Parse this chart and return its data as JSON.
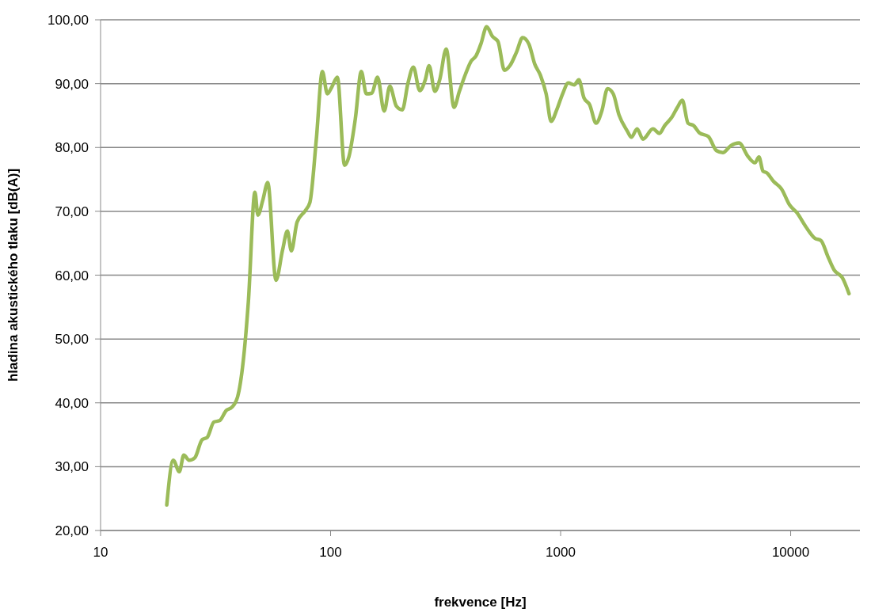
{
  "chart_data": {
    "type": "line",
    "xlabel": "frekvence [Hz]",
    "ylabel": "hladina akustického tlaku [dB(A)]",
    "log": "x",
    "grid": "y",
    "marker": "none",
    "line_style": "solid",
    "xlim": [
      10,
      20000
    ],
    "xticks": [
      10,
      100,
      1000,
      10000
    ],
    "ylim": [
      20,
      100
    ],
    "yticks": [
      {
        "value": 20,
        "label": "20,00"
      },
      {
        "value": 30,
        "label": "30,00"
      },
      {
        "value": 40,
        "label": "40,00"
      },
      {
        "value": 50,
        "label": "50,00"
      },
      {
        "value": 60,
        "label": "60,00"
      },
      {
        "value": 70,
        "label": "70,00"
      },
      {
        "value": 80,
        "label": "80,00"
      },
      {
        "value": 90,
        "label": "90,00"
      },
      {
        "value": 100,
        "label": "100,00"
      }
    ],
    "x": [
      19.4,
      20.7,
      22,
      23,
      24.3,
      25.7,
      27.6,
      29.1,
      31.1,
      32.9,
      35.2,
      37.2,
      39.4,
      41.7,
      43.9,
      46.9,
      48.3,
      50.7,
      53.3,
      57.9,
      61.8,
      64.9,
      67.5,
      71.5,
      77.6,
      81.3,
      86.7,
      92.1,
      96.8,
      101,
      107,
      115,
      120,
      128,
      136,
      143,
      151,
      160,
      171,
      181,
      193,
      205,
      217,
      229,
      244,
      258,
      268,
      284,
      298,
      318,
      344,
      363,
      386,
      408,
      428,
      450,
      477,
      505,
      534,
      570,
      604,
      644,
      683,
      728,
      771,
      817,
      865,
      909,
      962,
      1020,
      1080,
      1145,
      1200,
      1262,
      1337,
      1426,
      1510,
      1599,
      1693,
      1794,
      1947,
      2030,
      2150,
      2280,
      2519,
      2690,
      2830,
      3040,
      3220,
      3380,
      3580,
      3790,
      4010,
      4390,
      4760,
      5070,
      5500,
      5960,
      6550,
      6990,
      7280,
      7580,
      7890,
      8420,
      9130,
      9890,
      10630,
      11630,
      12720,
      13560,
      14480,
      15450,
      16770,
      17930
    ],
    "series": [
      {
        "color": "#9bbb59",
        "values": [
          24.0,
          31.0,
          29.2,
          31.8,
          31.0,
          31.4,
          34.2,
          34.6,
          37.0,
          37.2,
          38.8,
          39.3,
          40.9,
          46.5,
          55.8,
          73.0,
          69.4,
          71.7,
          74.5,
          59.2,
          63.9,
          66.9,
          63.8,
          68.3,
          70.1,
          71.4,
          81.3,
          91.9,
          88.4,
          89.4,
          91.0,
          77.2,
          78.5,
          84.4,
          91.9,
          88.4,
          88.5,
          91.0,
          85.7,
          89.6,
          86.5,
          85.9,
          90.1,
          92.6,
          88.9,
          90.6,
          92.8,
          88.8,
          90.6,
          95.4,
          86.3,
          88.8,
          91.5,
          93.5,
          94.3,
          96.2,
          98.9,
          97.4,
          96.6,
          92.1,
          92.9,
          95.0,
          97.2,
          96.2,
          93.1,
          91.3,
          88.4,
          84.1,
          85.9,
          88.4,
          90.1,
          89.8,
          90.6,
          87.8,
          86.7,
          83.8,
          85.7,
          89.2,
          88.4,
          85.1,
          82.6,
          81.6,
          82.9,
          81.3,
          82.9,
          82.2,
          83.4,
          84.7,
          86.3,
          87.4,
          83.8,
          83.4,
          82.3,
          81.7,
          79.5,
          79.2,
          80.3,
          80.7,
          78.5,
          77.6,
          78.5,
          76.3,
          76.0,
          74.7,
          73.5,
          71.0,
          69.8,
          67.6,
          65.8,
          65.4,
          63.0,
          60.8,
          59.6,
          57.1
        ]
      }
    ]
  }
}
